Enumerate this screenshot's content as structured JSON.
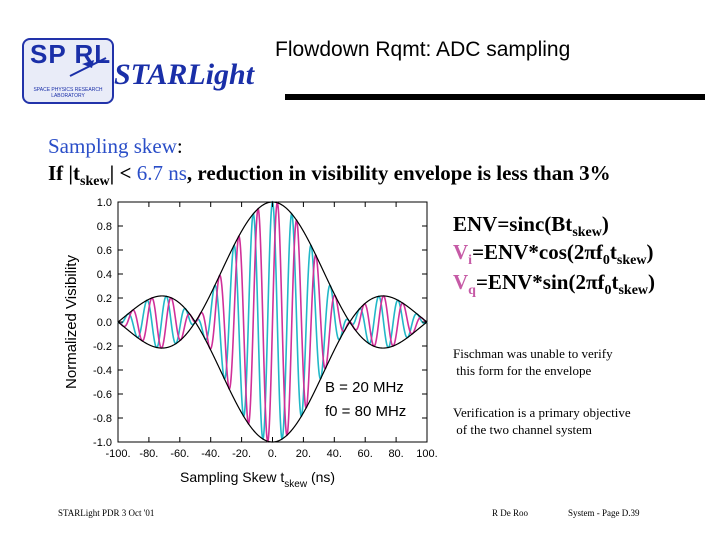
{
  "header": {
    "logo_text": "SP RL",
    "logo_sub": "SPACE PHYSICS RESEARCH LABORATORY",
    "brand": "STARLight",
    "title": "Flowdown Rqmt:  ADC sampling"
  },
  "body": {
    "line1_label": "Sampling skew",
    "line1_colon": ":",
    "line2_prefix": "If |t",
    "line2_sub": "skew",
    "line2_mid": "| < ",
    "line2_value": "6.7 ns",
    "line2_suffix": ", reduction in visibility envelope is less than 3%"
  },
  "equations": {
    "env": "ENV=sinc(Bt",
    "vi_label": "V",
    "vi_sub": "i",
    "vi_rest": "=ENV*cos(2",
    "vq_label": "V",
    "vq_sub": "q",
    "vq_rest": "=ENV*sin(2",
    "pi": "π",
    "f0": "f",
    "f0_sub": "0",
    "t": "t",
    "skew": "skew",
    "close": ")"
  },
  "notes": {
    "n1a": "Fischman was unable to verify",
    "n1b": " this form for the envelope",
    "n2a": "Verification is a primary objective",
    "n2b": " of the two channel system"
  },
  "footer": {
    "left": "STARLight PDR  3  Oct  '01",
    "center": "R De Roo",
    "right": "System - Page D.39"
  },
  "chart_data": {
    "type": "line",
    "title": "",
    "xlabel": "Sampling Skew  t",
    "xlabel_sub": "skew",
    "xlabel_unit": "(ns)",
    "ylabel": "Normalized Visibility",
    "xlim": [
      -100,
      100
    ],
    "ylim": [
      -1.0,
      1.0
    ],
    "x_ticks": [
      "-100.",
      "-80.",
      "-60.",
      "-40.",
      "-20.",
      "0.",
      "20.",
      "40.",
      "60.",
      "80.",
      "100."
    ],
    "y_ticks": [
      "1.0",
      "0.8",
      "0.6",
      "0.4",
      "0.2",
      "0.0",
      "-0.2",
      "-0.4",
      "-0.6",
      "-0.8",
      "-1.0"
    ],
    "annotations": [
      "B = 20 MHz",
      "f0 = 80 MHz"
    ],
    "params": {
      "B_MHz": 20,
      "f0_MHz": 80
    },
    "series": [
      {
        "name": "ENV",
        "color": "#000000"
      },
      {
        "name": "Vi",
        "color": "#22b8c8"
      },
      {
        "name": "Vq",
        "color": "#d0309a"
      }
    ]
  }
}
